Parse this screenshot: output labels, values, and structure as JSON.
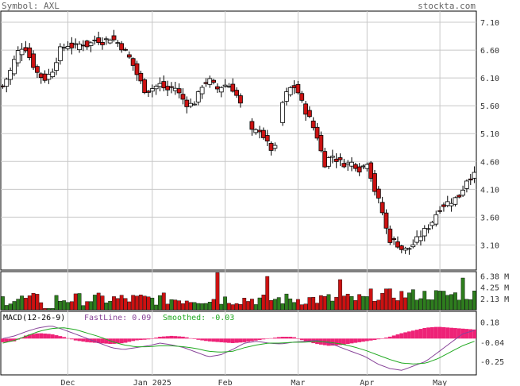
{
  "header": {
    "symbol_label": "Symbol: AXL",
    "site": "stockta.com"
  },
  "colors": {
    "up": "#2e7d1e",
    "down": "#cc1111",
    "grid": "#c8c8c8",
    "macd_hist": "#ee2277",
    "fast_line": "#884499",
    "smoothed_line": "#22aa22"
  },
  "chart_data": [
    {
      "type": "candlestick",
      "title": "",
      "price_ticks": [
        7.1,
        6.6,
        6.1,
        5.6,
        5.1,
        4.6,
        4.1,
        3.6,
        3.1
      ],
      "price_tick_labels": [
        "7.10",
        "6.60",
        "6.10",
        "5.60",
        "5.10",
        "4.60",
        "4.10",
        "3.60",
        "3.10"
      ],
      "ylim": [
        2.65,
        7.3
      ],
      "x_month_labels": [
        {
          "label": "Dec",
          "index": 17
        },
        {
          "label": "Jan 2025",
          "index": 39
        },
        {
          "label": "Feb",
          "index": 58
        },
        {
          "label": "Mar",
          "index": 77
        },
        {
          "label": "Apr",
          "index": 95
        },
        {
          "label": "May",
          "index": 114
        }
      ],
      "close_path": [
        5.95,
        6.2,
        6.55,
        6.7,
        6.4,
        6.15,
        6.08,
        6.25,
        6.6,
        6.7,
        6.65,
        6.72,
        6.68,
        6.8,
        6.75,
        6.82,
        6.75,
        6.6,
        6.4,
        6.1,
        5.85,
        5.92,
        5.98,
        5.88,
        5.95,
        5.75,
        5.6,
        5.68,
        6.0,
        6.05,
        5.9,
        5.98,
        5.95,
        5.72,
        5.35,
        5.1,
        5.18,
        4.92,
        4.75,
        5.6,
        5.9,
        5.95,
        5.6,
        5.35,
        5.05,
        4.55,
        4.72,
        4.6,
        4.55,
        4.58,
        4.45,
        4.6,
        4.1,
        3.75,
        3.2,
        3.15,
        3.0,
        3.05,
        3.2,
        3.35,
        3.5,
        3.75,
        3.85,
        3.9,
        4.0,
        4.3,
        4.35
      ],
      "volume_ticks": [
        "6.38 M",
        "4.25 M",
        "2.13 M"
      ],
      "volume_tick_values": [
        6.38,
        4.25,
        2.13
      ],
      "volume_max": 7.2,
      "macd": {
        "title": "MACD(12-26-9)",
        "fast_label": "FastLine: 0.09",
        "smoothed_label": "Smoothed: -0.03",
        "ticks": [
          "0.18",
          "-0.04",
          "-0.25"
        ],
        "tick_values": [
          0.18,
          -0.04,
          -0.25
        ],
        "ylim": [
          -0.4,
          0.3
        ],
        "fast_path": [
          0.0,
          0.03,
          0.08,
          0.12,
          0.14,
          0.1,
          0.05,
          0.0,
          -0.05,
          -0.1,
          -0.12,
          -0.1,
          -0.08,
          -0.05,
          -0.07,
          -0.1,
          -0.15,
          -0.2,
          -0.18,
          -0.12,
          -0.05,
          -0.03,
          -0.05,
          -0.06,
          -0.04,
          -0.03,
          -0.02,
          -0.05,
          -0.1,
          -0.15,
          -0.2,
          -0.28,
          -0.33,
          -0.35,
          -0.3,
          -0.25,
          -0.15,
          -0.05,
          0.05,
          0.09
        ],
        "smooth_path": [
          -0.05,
          -0.02,
          0.03,
          0.08,
          0.11,
          0.12,
          0.1,
          0.06,
          0.02,
          -0.03,
          -0.07,
          -0.09,
          -0.09,
          -0.08,
          -0.08,
          -0.09,
          -0.11,
          -0.14,
          -0.15,
          -0.14,
          -0.1,
          -0.07,
          -0.05,
          -0.05,
          -0.04,
          -0.04,
          -0.03,
          -0.04,
          -0.06,
          -0.09,
          -0.13,
          -0.18,
          -0.23,
          -0.27,
          -0.28,
          -0.27,
          -0.22,
          -0.15,
          -0.08,
          -0.03
        ],
        "hist_path": [
          -0.04,
          -0.03,
          0.04,
          0.06,
          0.05,
          0.02,
          -0.02,
          -0.04,
          -0.05,
          -0.06,
          -0.05,
          -0.02,
          -0.01,
          0.02,
          0.03,
          0.02,
          -0.01,
          -0.03,
          -0.04,
          -0.05,
          -0.04,
          -0.02,
          0.0,
          0.02,
          0.02,
          -0.03,
          -0.06,
          -0.08,
          -0.07,
          -0.05,
          -0.03,
          -0.01,
          0.02,
          0.06,
          0.09,
          0.12,
          0.13,
          0.12,
          0.11,
          0.1
        ]
      }
    }
  ]
}
